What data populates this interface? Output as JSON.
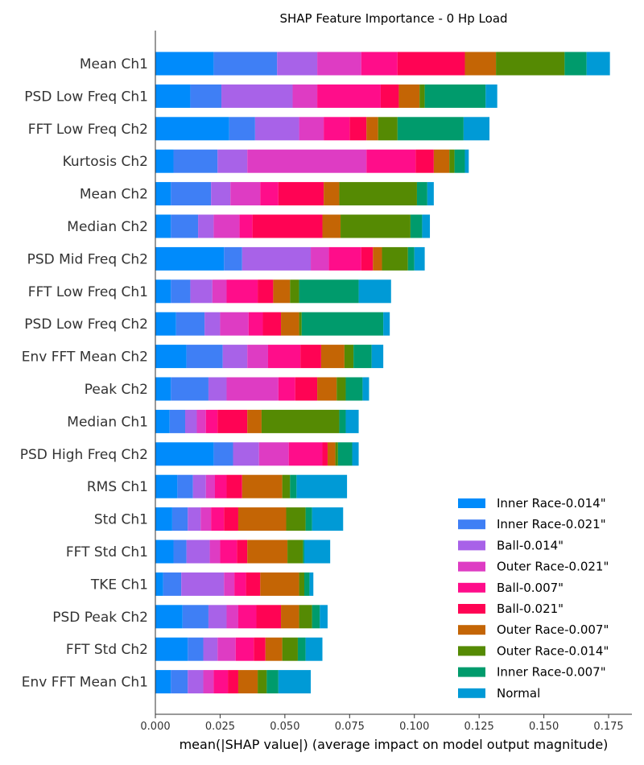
{
  "chart_data": {
    "type": "bar",
    "orientation": "horizontal",
    "stacked": true,
    "title": "SHAP Feature Importance - 0 Hp Load",
    "xlabel": "mean(|SHAP value|) (average impact on model output magnitude)",
    "ylabel": "",
    "xlim": [
      0,
      0.184
    ],
    "xticks": [
      "0.000",
      "0.025",
      "0.050",
      "0.075",
      "0.100",
      "0.125",
      "0.150",
      "0.175"
    ],
    "grid": false,
    "legend_position": "lower-right",
    "categories": [
      "Mean Ch1",
      "PSD Low Freq Ch1",
      "FFT Low Freq Ch2",
      "Kurtosis Ch2",
      "Mean Ch2",
      "Median Ch2",
      "PSD Mid Freq Ch2",
      "FFT Low Freq Ch1",
      "PSD Low Freq Ch2",
      "Env FFT Mean Ch2",
      "Peak Ch2",
      "Median Ch1",
      "PSD High Freq Ch2",
      "RMS Ch1",
      "Std Ch1",
      "FFT Std Ch1",
      "TKE Ch1",
      "PSD Peak Ch2",
      "FFT Std Ch2",
      "Env FFT Mean Ch1"
    ],
    "series": [
      {
        "name": "Inner Race-0.014\"",
        "color": "#008bfb",
        "values": [
          0.0225,
          0.0135,
          0.0285,
          0.007,
          0.006,
          0.006,
          0.0265,
          0.006,
          0.008,
          0.012,
          0.006,
          0.0055,
          0.0225,
          0.0085,
          0.0065,
          0.007,
          0.003,
          0.0105,
          0.0125,
          0.006
        ]
      },
      {
        "name": "Inner Race-0.021\"",
        "color": "#3f7ff5",
        "values": [
          0.0245,
          0.012,
          0.01,
          0.017,
          0.0155,
          0.0105,
          0.007,
          0.0075,
          0.011,
          0.014,
          0.0145,
          0.006,
          0.0075,
          0.006,
          0.006,
          0.005,
          0.007,
          0.01,
          0.006,
          0.0065
        ]
      },
      {
        "name": "Ball-0.014\"",
        "color": "#a862e8",
        "values": [
          0.0155,
          0.0275,
          0.017,
          0.0115,
          0.0075,
          0.006,
          0.0265,
          0.0085,
          0.006,
          0.0095,
          0.007,
          0.0045,
          0.01,
          0.005,
          0.005,
          0.009,
          0.0165,
          0.007,
          0.0055,
          0.006
        ]
      },
      {
        "name": "Outer Race-0.021\"",
        "color": "#de3cc3",
        "values": [
          0.017,
          0.0095,
          0.0095,
          0.046,
          0.0115,
          0.01,
          0.007,
          0.0055,
          0.011,
          0.008,
          0.02,
          0.0035,
          0.0115,
          0.0035,
          0.004,
          0.004,
          0.004,
          0.0045,
          0.007,
          0.004
        ]
      },
      {
        "name": "Ball-0.007\"",
        "color": "#ff0d8a",
        "values": [
          0.014,
          0.0245,
          0.01,
          0.019,
          0.007,
          0.005,
          0.0125,
          0.012,
          0.0055,
          0.0125,
          0.0065,
          0.0045,
          0.013,
          0.0045,
          0.005,
          0.0065,
          0.0045,
          0.007,
          0.007,
          0.0055
        ]
      },
      {
        "name": "Ball-0.021\"",
        "color": "#ff0354",
        "values": [
          0.026,
          0.007,
          0.0065,
          0.007,
          0.0175,
          0.027,
          0.0045,
          0.006,
          0.007,
          0.008,
          0.0085,
          0.0115,
          0.002,
          0.006,
          0.0055,
          0.004,
          0.0055,
          0.0095,
          0.0045,
          0.004
        ]
      },
      {
        "name": "Outer Race-0.007\"",
        "color": "#c46505",
        "values": [
          0.012,
          0.008,
          0.0045,
          0.006,
          0.006,
          0.007,
          0.0035,
          0.0065,
          0.007,
          0.009,
          0.0075,
          0.0055,
          0.003,
          0.0155,
          0.0185,
          0.0155,
          0.015,
          0.007,
          0.0065,
          0.0075
        ]
      },
      {
        "name": "Outer Race-0.014\"",
        "color": "#558a03",
        "values": [
          0.0265,
          0.002,
          0.0075,
          0.002,
          0.03,
          0.027,
          0.01,
          0.0035,
          0.001,
          0.0035,
          0.0035,
          0.03,
          0.001,
          0.003,
          0.0075,
          0.006,
          0.002,
          0.005,
          0.006,
          0.0035
        ]
      },
      {
        "name": "Inner Race-0.007\"",
        "color": "#009b6c",
        "values": [
          0.0085,
          0.0235,
          0.0255,
          0.004,
          0.004,
          0.0045,
          0.0025,
          0.023,
          0.0315,
          0.007,
          0.0065,
          0.0025,
          0.0055,
          0.0025,
          0.0025,
          0.0005,
          0.002,
          0.003,
          0.003,
          0.0045
        ]
      },
      {
        "name": "Normal",
        "color": "#009ad6",
        "values": [
          0.009,
          0.0045,
          0.01,
          0.0015,
          0.0025,
          0.003,
          0.004,
          0.0125,
          0.0025,
          0.0045,
          0.0025,
          0.005,
          0.0025,
          0.0195,
          0.012,
          0.01,
          0.0015,
          0.003,
          0.0065,
          0.0125
        ]
      }
    ]
  }
}
